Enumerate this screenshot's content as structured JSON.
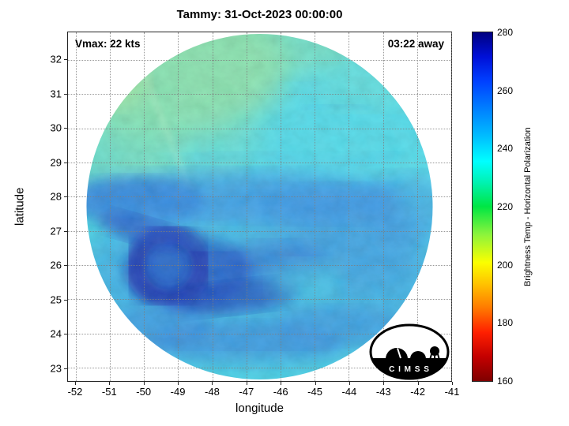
{
  "title": "Tammy: 31-Oct-2023 00:00:00",
  "annotations": {
    "vmax": "Vmax: 22 kts",
    "away": "03:22 away"
  },
  "logo": {
    "text": "C I M S S"
  },
  "colors": {
    "background": "#ffffff",
    "axis": "#262626",
    "grid": "#7d7d7d",
    "swath_base_cyan": "#3ed7e8",
    "swath_green": "#8fe4a2",
    "swath_blue": "#2e8de8",
    "swath_dark_blue": "#081fa6"
  },
  "chart_data": {
    "type": "heatmap",
    "title": "Tammy: 31-Oct-2023 00:00:00",
    "xlabel": "longitude",
    "ylabel": "latitude",
    "xlim": [
      -52.23,
      -41.0
    ],
    "ylim": [
      22.61,
      32.81
    ],
    "x_ticks": [
      -52,
      -51,
      -50,
      -49,
      -48,
      -47,
      -46,
      -45,
      -44,
      -43,
      -42,
      -41
    ],
    "y_ticks": [
      23,
      24,
      25,
      26,
      27,
      28,
      29,
      30,
      31,
      32
    ],
    "grid": true,
    "annotations": [
      "Vmax: 22 kts",
      "03:22 away"
    ],
    "swath": {
      "shape": "circle",
      "center_lon": -46.6,
      "center_lat": 27.7,
      "radius_deg": 5.1
    },
    "colorbar": {
      "label": "Brightness Temp - Horizontal Polarization",
      "min": 160,
      "max": 280,
      "ticks": [
        160,
        180,
        200,
        220,
        240,
        260,
        280
      ],
      "colormap": "jet reversed (low=dark red, high=dark blue)",
      "stops": [
        [
          0.0,
          "#7f0000"
        ],
        [
          0.07,
          "#c40000"
        ],
        [
          0.14,
          "#ff2000"
        ],
        [
          0.21,
          "#ff7a00"
        ],
        [
          0.28,
          "#ffc400"
        ],
        [
          0.34,
          "#fbff00"
        ],
        [
          0.42,
          "#8cf43c"
        ],
        [
          0.5,
          "#00e644"
        ],
        [
          0.57,
          "#00f2b2"
        ],
        [
          0.63,
          "#00ffff"
        ],
        [
          0.7,
          "#00bfff"
        ],
        [
          0.78,
          "#0080ff"
        ],
        [
          0.86,
          "#0040ff"
        ],
        [
          0.93,
          "#0010d8"
        ],
        [
          1.0,
          "#000080"
        ]
      ]
    },
    "features": [
      "circular microwave swath centered near 46.6W 27.7N",
      "green region (~215-230 K) in northwest quadrant",
      "cyan background (~235-245 K) over northern half",
      "broad mottled blue (~250-265 K) over southern half",
      "dark navy curved convective band (~270-280 K) near 49.5W 26N"
    ]
  }
}
